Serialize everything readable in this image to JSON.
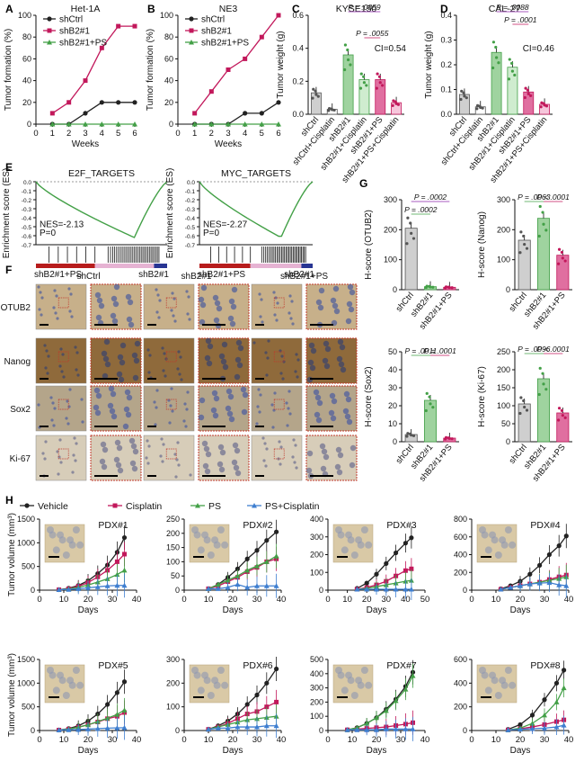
{
  "colors": {
    "black": "#222222",
    "pink": "#c2185b",
    "green": "#43a047",
    "blue": "#3f7fd0",
    "pink_light": "#e06fa0",
    "green_light": "#9fd39f"
  },
  "panel_letters": [
    "A",
    "B",
    "C",
    "D",
    "E",
    "F",
    "G",
    "H"
  ],
  "chart_data": [
    {
      "id": "A",
      "type": "line",
      "title": "Het-1A",
      "xlabel": "Weeks",
      "ylabel": "Tumor formation (%)",
      "xlim": [
        0,
        6
      ],
      "ylim": [
        0,
        100
      ],
      "xticks": [
        "0",
        "1",
        "2",
        "3",
        "4",
        "5",
        "6"
      ],
      "yticks": [
        "0",
        "20",
        "40",
        "60",
        "80",
        "100"
      ],
      "x": [
        1,
        2,
        3,
        4,
        5,
        6
      ],
      "series": [
        {
          "name": "shCtrl",
          "color": "#222222",
          "marker": "circle",
          "values": [
            0,
            0,
            10,
            20,
            20,
            20
          ]
        },
        {
          "name": "shB2#1",
          "color": "#c2185b",
          "marker": "square",
          "values": [
            10,
            20,
            40,
            70,
            90,
            90
          ]
        },
        {
          "name": "shB2#1+PS",
          "color": "#43a047",
          "marker": "triangle",
          "values": [
            0,
            0,
            0,
            0,
            0,
            0
          ]
        }
      ]
    },
    {
      "id": "B",
      "type": "line",
      "title": "NE3",
      "xlabel": "Weeks",
      "ylabel": "Tumor formation (%)",
      "xlim": [
        0,
        6
      ],
      "ylim": [
        0,
        100
      ],
      "xticks": [
        "0",
        "1",
        "2",
        "3",
        "4",
        "5",
        "6"
      ],
      "yticks": [
        "0",
        "20",
        "40",
        "60",
        "80",
        "100"
      ],
      "x": [
        1,
        2,
        3,
        4,
        5,
        6
      ],
      "series": [
        {
          "name": "shCtrl",
          "color": "#222222",
          "marker": "circle",
          "values": [
            0,
            0,
            0,
            10,
            10,
            20
          ]
        },
        {
          "name": "shB2#1",
          "color": "#c2185b",
          "marker": "square",
          "values": [
            10,
            30,
            50,
            60,
            80,
            100
          ]
        },
        {
          "name": "shB2#1+PS",
          "color": "#43a047",
          "marker": "triangle",
          "values": [
            0,
            0,
            0,
            0,
            0,
            0
          ]
        }
      ]
    },
    {
      "id": "C",
      "type": "bar",
      "title": "KYSE150",
      "ylabel": "Tumor weight (g)",
      "ylim": [
        0,
        0.6
      ],
      "yticks": [
        "0.0",
        "0.2",
        "0.4",
        "0.6"
      ],
      "categories": [
        "shCtrl",
        "shCtrl+Cisplatin",
        "shB2#1",
        "shB2#1+Cisplatin",
        "shB2#1+PS",
        "shB2#1+PS+Cisplatin"
      ],
      "values": [
        0.13,
        0.03,
        0.36,
        0.21,
        0.21,
        0.07
      ],
      "ci": "CI=0.54",
      "pvalues": [
        "P = .0859",
        "P = .0055"
      ]
    },
    {
      "id": "D",
      "type": "bar",
      "title": "CAL-27",
      "ylabel": "Tumor weight (g)",
      "ylim": [
        0,
        0.4
      ],
      "yticks": [
        "0.0",
        "0.1",
        "0.2",
        "0.3",
        "0.4"
      ],
      "categories": [
        "shCtrl",
        "shCtrl+Cisplatin",
        "shB2#1",
        "shB2#1+Cisplatin",
        "shB2#1+PS",
        "shB2#1+PS+Cisplatin"
      ],
      "values": [
        0.08,
        0.03,
        0.25,
        0.19,
        0.09,
        0.04
      ],
      "ci": "CI=0.46",
      "pvalues": [
        "P = .0088",
        "P = .0001"
      ]
    },
    {
      "id": "E1",
      "type": "line",
      "title": "E2F_TARGETS",
      "ylabel": "Enrichment score (ES)",
      "ylim": [
        -0.7,
        0
      ],
      "yticks": [
        "0.0",
        "-0.1",
        "-0.2",
        "-0.3",
        "-0.4",
        "-0.5",
        "-0.6",
        "-0.7"
      ],
      "nes": "NES=-2.13",
      "p": "P=0",
      "left_label": "shB2#1+PS",
      "right_label": "shB2#1"
    },
    {
      "id": "E2",
      "type": "line",
      "title": "MYC_TARGETS",
      "ylabel": "Enrichment score (ES)",
      "ylim": [
        -0.7,
        0
      ],
      "yticks": [
        "0.0",
        "-0.1",
        "-0.2",
        "-0.3",
        "-0.4",
        "-0.5",
        "-0.6",
        "-0.7"
      ],
      "nes": "NES=-2.27",
      "p": "P=0",
      "left_label": "shB2#1+PS",
      "right_label": "shB2#1"
    },
    {
      "id": "G1",
      "type": "bar",
      "ylabel": "H-score (OTUB2)",
      "ylim": [
        0,
        300
      ],
      "yticks": [
        "0",
        "100",
        "200",
        "300"
      ],
      "categories": [
        "shCtrl",
        "shB2#1",
        "shB2#1+PS"
      ],
      "values": [
        205,
        10,
        8
      ],
      "pvalues": [
        "P = .0002",
        "P = .0002"
      ]
    },
    {
      "id": "G2",
      "type": "bar",
      "ylabel": "H-score (Nanog)",
      "ylim": [
        0,
        300
      ],
      "yticks": [
        "0",
        "100",
        "200",
        "300"
      ],
      "categories": [
        "shCtrl",
        "shB2#1",
        "shB2#1+PS"
      ],
      "values": [
        165,
        238,
        115
      ],
      "pvalues": [
        "P = .0063",
        "P < .0001"
      ]
    },
    {
      "id": "G3",
      "type": "bar",
      "ylabel": "H-score (Sox2)",
      "ylim": [
        0,
        50
      ],
      "yticks": [
        "0",
        "10",
        "20",
        "30",
        "40",
        "50"
      ],
      "categories": [
        "shCtrl",
        "shB2#1",
        "shB2#1+PS"
      ],
      "values": [
        4,
        23,
        2
      ],
      "pvalues": [
        "P = .0011",
        "P = .0001"
      ]
    },
    {
      "id": "G4",
      "type": "bar",
      "ylabel": "H-score (Ki-67)",
      "ylim": [
        0,
        250
      ],
      "yticks": [
        "0",
        "50",
        "100",
        "150",
        "200",
        "250"
      ],
      "categories": [
        "shCtrl",
        "shB2#1",
        "shB2#1+PS"
      ],
      "values": [
        105,
        175,
        80
      ],
      "pvalues": [
        "P = .0096",
        "P < .0001"
      ]
    },
    {
      "id": "H1",
      "type": "line",
      "title": "PDX#1",
      "xlabel": "Days",
      "ylabel": "Tumor volume (mm³)",
      "xlim": [
        0,
        40
      ],
      "ylim": [
        0,
        1500
      ],
      "xticks": [
        "0",
        "10",
        "20",
        "30",
        "40"
      ],
      "yticks": [
        "0",
        "500",
        "1000",
        "1500"
      ],
      "x": [
        8,
        12,
        16,
        20,
        24,
        28,
        32,
        35
      ],
      "series": [
        {
          "name": "Vehicle",
          "color": "#222222",
          "values": [
            10,
            40,
            100,
            200,
            350,
            530,
            800,
            1110
          ]
        },
        {
          "name": "Cisplatin",
          "color": "#c2185b",
          "values": [
            10,
            30,
            80,
            160,
            280,
            420,
            600,
            760
          ]
        },
        {
          "name": "PS",
          "color": "#43a047",
          "values": [
            10,
            25,
            60,
            110,
            170,
            240,
            330,
            420
          ]
        },
        {
          "name": "PS+Cisplatin",
          "color": "#3f7fd0",
          "values": [
            10,
            15,
            30,
            50,
            70,
            90,
            100,
            100
          ]
        }
      ]
    },
    {
      "id": "H2",
      "type": "line",
      "title": "PDX#2",
      "xlabel": "Days",
      "ylabel": "",
      "xlim": [
        0,
        40
      ],
      "ylim": [
        0,
        250
      ],
      "xticks": [
        "0",
        "10",
        "20",
        "30",
        "40"
      ],
      "yticks": [
        "0",
        "50",
        "100",
        "150",
        "200",
        "250"
      ],
      "x": [
        10,
        14,
        18,
        22,
        26,
        30,
        34,
        38
      ],
      "series": [
        {
          "name": "Vehicle",
          "color": "#222222",
          "values": [
            5,
            20,
            45,
            75,
            110,
            140,
            175,
            205
          ]
        },
        {
          "name": "Cisplatin",
          "color": "#c2185b",
          "values": [
            5,
            15,
            30,
            45,
            65,
            80,
            100,
            110
          ]
        },
        {
          "name": "PS",
          "color": "#43a047",
          "values": [
            5,
            20,
            35,
            50,
            70,
            85,
            100,
            120
          ]
        },
        {
          "name": "PS+Cisplatin",
          "color": "#3f7fd0",
          "values": [
            5,
            5,
            10,
            20,
            10,
            15,
            15,
            15
          ]
        }
      ]
    },
    {
      "id": "H3",
      "type": "line",
      "title": "PDX#3",
      "xlabel": "Days",
      "ylabel": "",
      "xlim": [
        0,
        50
      ],
      "ylim": [
        0,
        400
      ],
      "xticks": [
        "0",
        "10",
        "20",
        "30",
        "40",
        "50"
      ],
      "yticks": [
        "0",
        "100",
        "200",
        "300",
        "400"
      ],
      "x": [
        15,
        20,
        25,
        30,
        35,
        40,
        43
      ],
      "series": [
        {
          "name": "Vehicle",
          "color": "#222222",
          "values": [
            10,
            40,
            90,
            150,
            210,
            265,
            295
          ]
        },
        {
          "name": "Cisplatin",
          "color": "#c2185b",
          "values": [
            5,
            15,
            30,
            50,
            80,
            110,
            120
          ]
        },
        {
          "name": "PS",
          "color": "#43a047",
          "values": [
            5,
            10,
            20,
            30,
            40,
            50,
            55
          ]
        },
        {
          "name": "PS+Cisplatin",
          "color": "#3f7fd0",
          "values": [
            5,
            5,
            5,
            5,
            5,
            5,
            5
          ]
        }
      ]
    },
    {
      "id": "H4",
      "type": "line",
      "title": "PDX#4",
      "xlabel": "Days",
      "ylabel": "",
      "xlim": [
        0,
        40
      ],
      "ylim": [
        0,
        800
      ],
      "xticks": [
        "0",
        "10",
        "20",
        "30",
        "40"
      ],
      "yticks": [
        "0",
        "200",
        "400",
        "600",
        "800"
      ],
      "x": [
        12,
        16,
        20,
        24,
        28,
        32,
        36,
        39
      ],
      "series": [
        {
          "name": "Vehicle",
          "color": "#222222",
          "values": [
            15,
            50,
            100,
            180,
            280,
            400,
            500,
            610
          ]
        },
        {
          "name": "Cisplatin",
          "color": "#c2185b",
          "values": [
            10,
            30,
            50,
            70,
            90,
            120,
            150,
            170
          ]
        },
        {
          "name": "PS",
          "color": "#43a047",
          "values": [
            10,
            30,
            50,
            70,
            90,
            110,
            130,
            150
          ]
        },
        {
          "name": "PS+Cisplatin",
          "color": "#3f7fd0",
          "values": [
            10,
            30,
            50,
            70,
            80,
            85,
            60,
            50
          ]
        }
      ]
    },
    {
      "id": "H5",
      "type": "line",
      "title": "PDX#5",
      "xlabel": "Days",
      "ylabel": "Tumor volume (mm³)",
      "xlim": [
        0,
        40
      ],
      "ylim": [
        0,
        1500
      ],
      "xticks": [
        "0",
        "10",
        "20",
        "30",
        "40"
      ],
      "yticks": [
        "0",
        "500",
        "1000",
        "1500"
      ],
      "x": [
        8,
        12,
        16,
        20,
        24,
        28,
        32,
        35
      ],
      "series": [
        {
          "name": "Vehicle",
          "color": "#222222",
          "values": [
            10,
            40,
            100,
            200,
            350,
            550,
            800,
            1030
          ]
        },
        {
          "name": "Cisplatin",
          "color": "#c2185b",
          "values": [
            10,
            30,
            70,
            120,
            180,
            250,
            300,
            380
          ]
        },
        {
          "name": "PS",
          "color": "#43a047",
          "values": [
            10,
            30,
            70,
            120,
            190,
            260,
            340,
            430
          ]
        },
        {
          "name": "PS+Cisplatin",
          "color": "#3f7fd0",
          "values": [
            10,
            15,
            20,
            30,
            40,
            50,
            55,
            60
          ]
        }
      ]
    },
    {
      "id": "H6",
      "type": "line",
      "title": "PDX#6",
      "xlabel": "Days",
      "ylabel": "",
      "xlim": [
        0,
        40
      ],
      "ylim": [
        0,
        300
      ],
      "xticks": [
        "0",
        "10",
        "20",
        "30",
        "40"
      ],
      "yticks": [
        "0",
        "100",
        "200",
        "300"
      ],
      "x": [
        10,
        14,
        18,
        22,
        26,
        30,
        34,
        38
      ],
      "series": [
        {
          "name": "Vehicle",
          "color": "#222222",
          "values": [
            5,
            20,
            40,
            70,
            110,
            150,
            200,
            260
          ]
        },
        {
          "name": "Cisplatin",
          "color": "#c2185b",
          "values": [
            5,
            15,
            30,
            50,
            70,
            80,
            100,
            120
          ]
        },
        {
          "name": "PS",
          "color": "#43a047",
          "values": [
            5,
            15,
            25,
            35,
            45,
            50,
            55,
            60
          ]
        },
        {
          "name": "PS+Cisplatin",
          "color": "#3f7fd0",
          "values": [
            5,
            10,
            10,
            15,
            15,
            15,
            20,
            20
          ]
        }
      ]
    },
    {
      "id": "H7",
      "type": "line",
      "title": "PDX#7",
      "xlabel": "Days",
      "ylabel": "",
      "xlim": [
        0,
        40
      ],
      "ylim": [
        0,
        500
      ],
      "xticks": [
        "0",
        "10",
        "20",
        "30",
        "40"
      ],
      "yticks": [
        "0",
        "100",
        "200",
        "300",
        "400",
        "500"
      ],
      "x": [
        8,
        12,
        16,
        20,
        24,
        28,
        32,
        35
      ],
      "series": [
        {
          "name": "Vehicle",
          "color": "#222222",
          "values": [
            5,
            20,
            50,
            90,
            150,
            220,
            310,
            410
          ]
        },
        {
          "name": "Cisplatin",
          "color": "#c2185b",
          "values": [
            5,
            10,
            15,
            20,
            25,
            35,
            45,
            55
          ]
        },
        {
          "name": "PS",
          "color": "#43a047",
          "values": [
            5,
            20,
            50,
            90,
            140,
            210,
            290,
            385
          ]
        },
        {
          "name": "PS+Cisplatin",
          "color": "#3f7fd0",
          "values": [
            5,
            5,
            5,
            5,
            10,
            10,
            10,
            10
          ]
        }
      ]
    },
    {
      "id": "H8",
      "type": "line",
      "title": "PDX#8",
      "xlabel": "Days",
      "ylabel": "",
      "xlim": [
        0,
        40
      ],
      "ylim": [
        0,
        600
      ],
      "xticks": [
        "0",
        "10",
        "20",
        "30",
        "40"
      ],
      "yticks": [
        "0",
        "200",
        "400",
        "600"
      ],
      "x": [
        15,
        20,
        25,
        30,
        35,
        38
      ],
      "series": [
        {
          "name": "Vehicle",
          "color": "#222222",
          "values": [
            10,
            50,
            130,
            260,
            400,
            510
          ]
        },
        {
          "name": "Cisplatin",
          "color": "#c2185b",
          "values": [
            5,
            15,
            30,
            50,
            75,
            90
          ]
        },
        {
          "name": "PS",
          "color": "#43a047",
          "values": [
            5,
            20,
            60,
            130,
            240,
            360
          ]
        },
        {
          "name": "PS+Cisplatin",
          "color": "#3f7fd0",
          "values": [
            5,
            10,
            15,
            20,
            30,
            45
          ]
        }
      ]
    }
  ],
  "legend_H": [
    "Vehicle",
    "Cisplatin",
    "PS",
    "PS+Cisplatin"
  ],
  "panel_F": {
    "columns": [
      "shCtrl",
      "shB2#1",
      "shB2#1+PS"
    ],
    "rows": [
      "OTUB2",
      "Nanog",
      "Sox2",
      "Ki-67"
    ]
  }
}
